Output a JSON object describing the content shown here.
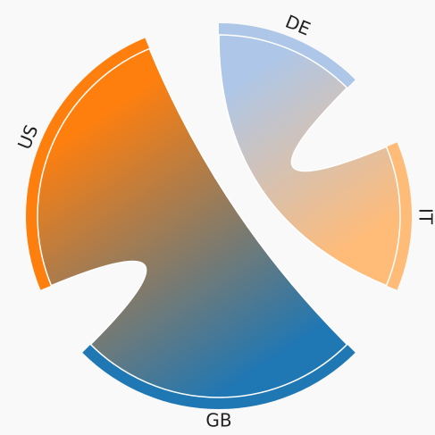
{
  "chart_data": {
    "type": "chord",
    "groups": [
      {
        "name": "DE",
        "color": "#aec7e8"
      },
      {
        "name": "IT",
        "color": "#ffbb78"
      },
      {
        "name": "GB",
        "color": "#1f77b4"
      },
      {
        "name": "US",
        "color": "#ff7f0e"
      }
    ],
    "chords": [
      {
        "source": 0,
        "target": 1,
        "value": 1
      },
      {
        "source": 2,
        "target": 3,
        "value": 2
      }
    ]
  }
}
